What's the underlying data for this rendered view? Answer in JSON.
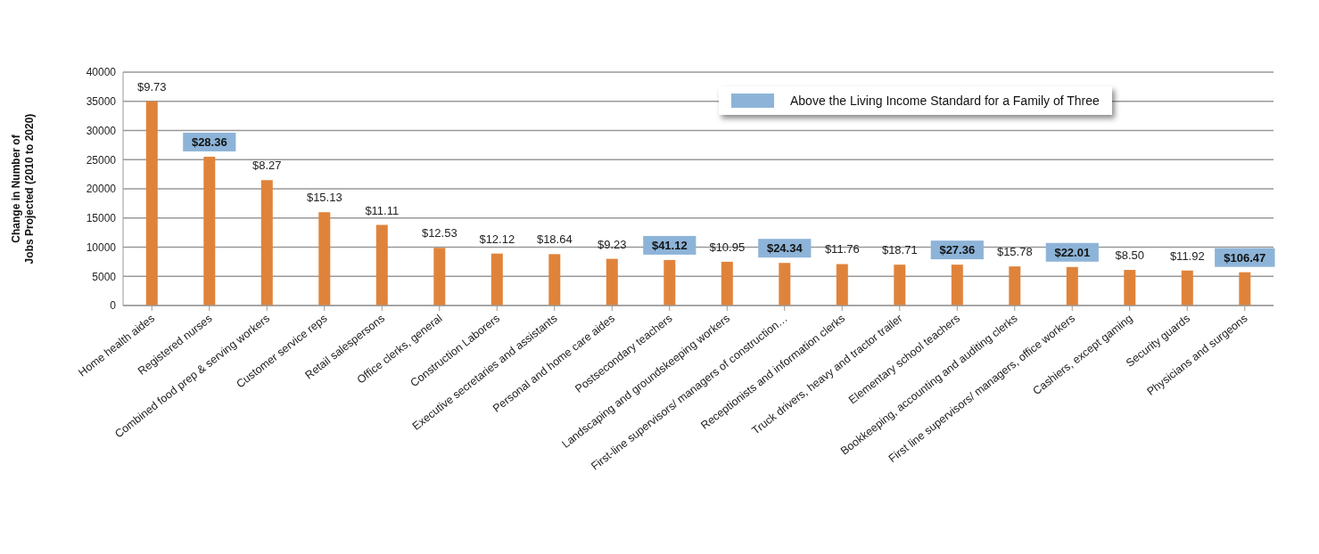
{
  "chart_data": {
    "type": "bar",
    "ylabel": "Change in Number of Jobs Projected (2010 to 2020)",
    "categories": [
      "Home health aides",
      "Registered nurses",
      "Combined food prep & serving workers",
      "Customer service reps",
      "Retail salespersons",
      "Office clerks, general",
      "Construction Laborers",
      "Executive secretaries and assistants",
      "Personal and home care aides",
      "Postsecondary teachers",
      "Landscaping and groundskeeping workers",
      "First-line supervisors/ managers of construction…",
      "Receptionists and information clerks",
      "Truck drivers, heavy and tractor trailer",
      "Elementary school teachers",
      "Bookkeeping, accounting and auditing clerks",
      "First line supervisors/ managers, office workers",
      "Cashiers, except gaming",
      "Security guards",
      "Physicians and surgeons"
    ],
    "values": [
      35000,
      25500,
      21500,
      16000,
      13800,
      9900,
      8900,
      8800,
      8000,
      7800,
      7500,
      7300,
      7100,
      7000,
      7000,
      6700,
      6600,
      6100,
      6000,
      5700
    ],
    "color": "#e0833a",
    "annotations": [
      {
        "text": "$9.73",
        "x": "Home health aides",
        "y": 35000
      },
      {
        "text": "$8.27",
        "x": "Combined food prep & serving workers",
        "y": 21500
      },
      {
        "text": "$15.13",
        "x": "Customer service reps",
        "y": 16000
      },
      {
        "text": "$11.11",
        "x": "Retail salespersons",
        "y": 13800
      },
      {
        "text": "$12.53",
        "x": "Office clerks, general",
        "y": 9900
      },
      {
        "text": "$12.12",
        "x": "Construction Laborers",
        "y": 8900
      },
      {
        "text": "$18.64",
        "x": "Executive secretaries and assistants",
        "y": 8800
      },
      {
        "text": "$9.23",
        "x": "Personal and home care aides",
        "y": 8000
      },
      {
        "text": "$10.95",
        "x": "Landscaping and groundskeeping workers",
        "y": 7500
      },
      {
        "text": "$11.76",
        "x": "Receptionists and information clerks",
        "y": 7100
      },
      {
        "text": "$18.71",
        "x": "Truck drivers, heavy and tractor trailer",
        "y": 7000
      },
      {
        "text": "$15.78",
        "x": "Bookkeeping, accounting and auditing clerks",
        "y": 6700
      },
      {
        "text": "$8.50",
        "x": "Cashiers, except gaming",
        "y": 6100
      },
      {
        "text": "$11.92",
        "x": "Security guards",
        "y": 6000
      },
      "Above the Living Income Standard for a Family of Three",
      {
        "text": "$28.36",
        "x": "Registered nurses",
        "y": 25500
      },
      {
        "text": "$41.12",
        "x": "Postsecondary teachers",
        "y": 7800
      },
      {
        "text": "$24.34",
        "x": "First-line supervisors/ managers of construction…",
        "y": 7300
      },
      {
        "text": "$27.36",
        "x": "Elementary school teachers",
        "y": 7000
      },
      {
        "text": "$22.01",
        "x": "First line supervisors/ managers, office workers",
        "y": 6600
      },
      {
        "text": "$106.47",
        "x": "Physicians and surgeons",
        "y": 5700
      }
    ],
    "ylim": [
      0,
      40000
    ],
    "yticks": [
      0,
      5000,
      10000,
      15000,
      20000,
      25000,
      30000,
      35000,
      40000
    ],
    "grid": "y"
  }
}
